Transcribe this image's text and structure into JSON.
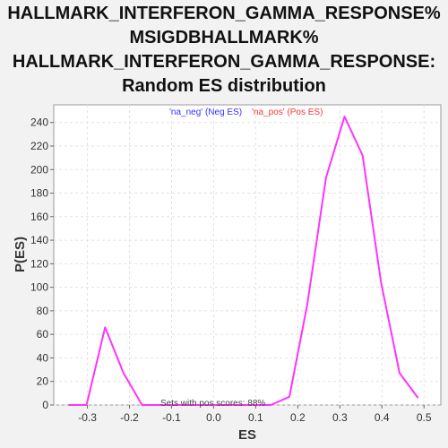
{
  "chart_data": {
    "type": "line",
    "title_lines": [
      "HALLMARK_INTERFERON_GAMMA_RESPONSE%",
      "MSIGDBHALLMARK%",
      "HALLMARK_INTERFERON_GAMMA_RESPONSE:",
      "Random ES distribution"
    ],
    "xlabel": "ES",
    "ylabel": "P(ES)",
    "xlim": [
      -0.38,
      0.54
    ],
    "ylim": [
      0,
      255
    ],
    "xticks": [
      -0.3,
      -0.2,
      -0.1,
      0.0,
      0.1,
      0.2,
      0.3,
      0.4,
      0.5
    ],
    "xtick_labels": [
      "-0.3",
      "-0.2",
      "-0.1",
      "0.0",
      "0.1",
      "0.2",
      "0.3",
      "0.4",
      "0.5"
    ],
    "yticks": [
      0,
      20,
      40,
      60,
      80,
      100,
      120,
      140,
      160,
      180,
      200,
      220,
      240
    ],
    "grid": true,
    "legend": [
      {
        "label": "'na_neg' (Neg ES)",
        "color": "#3333ff"
      },
      {
        "label": "'na_pos' (Pos ES)",
        "color": "#ff3333"
      }
    ],
    "legend_position": "top-center",
    "annotation": "Sets with pos scores: 88%",
    "series": [
      {
        "color": "#ff33ff",
        "x": [
          -0.345,
          -0.302,
          -0.258,
          -0.214,
          -0.17,
          -0.127,
          -0.083,
          -0.039,
          0.005,
          0.048,
          0.092,
          0.136,
          0.18,
          0.223,
          0.267,
          0.311,
          0.354,
          0.398,
          0.442,
          0.486
        ],
        "y": [
          0,
          0,
          66,
          27,
          0,
          0,
          0,
          0,
          0,
          0,
          0,
          0,
          7,
          86,
          193,
          245,
          212,
          104,
          27,
          6
        ]
      }
    ]
  }
}
